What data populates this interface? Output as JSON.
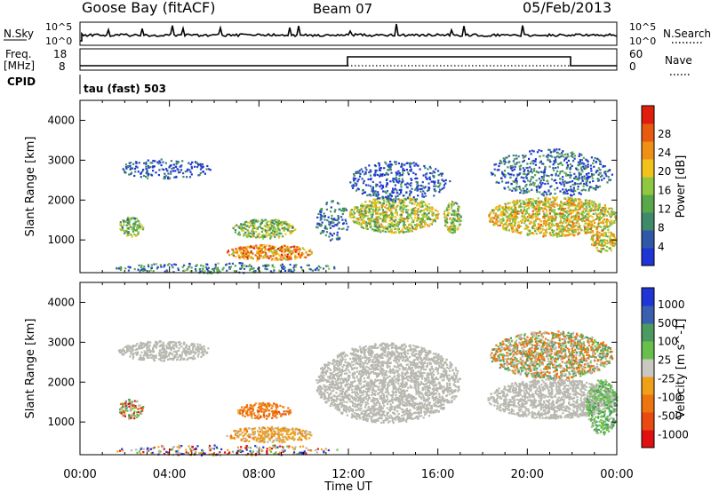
{
  "header": {
    "station": "Goose Bay (fitACF)",
    "beam": "Beam 07",
    "date": "05/Feb/2013"
  },
  "noise_panel": {
    "left_label": "N.Sky",
    "right_label": "N.Search",
    "left_ticks": [
      "10^5",
      "10^0"
    ],
    "right_ticks": [
      "10^5",
      "10^0"
    ]
  },
  "freq_panel": {
    "left_label_1": "Freq.",
    "left_label_2": "[MHz]",
    "right_label": "Nave",
    "left_ticks": [
      "18",
      "8"
    ],
    "right_ticks": [
      "60",
      "0"
    ],
    "cpid_label": "CPID",
    "cpid_text": "tau (fast) 503"
  },
  "colors": {
    "power_scale": [
      "#1f35d6",
      "#2f58a8",
      "#3f8a6a",
      "#58a84a",
      "#8fc83f",
      "#f2c21b",
      "#ef8f14",
      "#e85a10",
      "#e01e0e"
    ],
    "velocity_scale": [
      "#1f35d6",
      "#3a5fb0",
      "#4a9a62",
      "#68c04a",
      "#c8c8c0",
      "#f0a018",
      "#ee7410",
      "#e84a10",
      "#e01010"
    ],
    "ground_scatter": "#b8b8b0"
  },
  "chart_data": [
    {
      "type": "heatmap",
      "title": "Power",
      "xlabel": "Time UT",
      "ylabel": "Slant Range [km]",
      "x_ticks": [
        "00:00",
        "04:00",
        "08:00",
        "12:00",
        "16:00",
        "20:00",
        "00:00"
      ],
      "xlim_hours": [
        0,
        24
      ],
      "y_ticks": [
        "1000",
        "2000",
        "3000",
        "4000"
      ],
      "ylim": [
        180,
        4500
      ],
      "colorbar_label": "Power [dB]",
      "colorbar_ticks": [
        "4",
        "8",
        "12",
        "16",
        "20",
        "24",
        "28"
      ],
      "colorbar_range": [
        0,
        30
      ],
      "features": [
        {
          "t": [
            1.7,
            5.8
          ],
          "r": [
            2550,
            3050
          ],
          "level": 0.12
        },
        {
          "t": [
            1.7,
            2.8
          ],
          "r": [
            1100,
            1600
          ],
          "level": 0.42
        },
        {
          "t": [
            6.8,
            9.6
          ],
          "r": [
            1050,
            1550
          ],
          "level": 0.45
        },
        {
          "t": [
            6.5,
            10.4
          ],
          "r": [
            500,
            900
          ],
          "level": 0.72
        },
        {
          "t": [
            1.5,
            11.5
          ],
          "r": [
            180,
            450
          ],
          "level": 0.25
        },
        {
          "t": [
            10.5,
            12.0
          ],
          "r": [
            1000,
            2000
          ],
          "level": 0.2
        },
        {
          "t": [
            12.0,
            16.0
          ],
          "r": [
            1200,
            2100
          ],
          "level": 0.5
        },
        {
          "t": [
            12.0,
            16.5
          ],
          "r": [
            2000,
            3000
          ],
          "level": 0.12
        },
        {
          "t": [
            16.2,
            17.0
          ],
          "r": [
            1200,
            2000
          ],
          "level": 0.5
        },
        {
          "t": [
            18.2,
            24.0
          ],
          "r": [
            1100,
            2100
          ],
          "level": 0.58
        },
        {
          "t": [
            18.3,
            23.8
          ],
          "r": [
            2100,
            3300
          ],
          "level": 0.2
        },
        {
          "t": [
            22.8,
            24.0
          ],
          "r": [
            700,
            1300
          ],
          "level": 0.6
        }
      ]
    },
    {
      "type": "heatmap",
      "title": "Velocity",
      "xlabel": "Time UT",
      "ylabel": "Slant Range [km]",
      "x_ticks": [
        "00:00",
        "04:00",
        "08:00",
        "12:00",
        "16:00",
        "20:00",
        "00:00"
      ],
      "xlim_hours": [
        0,
        24
      ],
      "y_ticks": [
        "1000",
        "2000",
        "3000",
        "4000"
      ],
      "ylim": [
        180,
        4500
      ],
      "colorbar_label": "Velocity [m s^-1]",
      "colorbar_ticks": [
        "1000",
        "500",
        "100",
        "25",
        "-25",
        "-100",
        "-500",
        "-1000"
      ],
      "features": [
        {
          "t": [
            1.7,
            5.8
          ],
          "r": [
            2550,
            3050
          ],
          "kind": "ground"
        },
        {
          "t": [
            1.7,
            2.8
          ],
          "r": [
            1100,
            1600
          ],
          "kind": "mixed"
        },
        {
          "t": [
            7.0,
            9.4
          ],
          "r": [
            1100,
            1500
          ],
          "kind": "orange"
        },
        {
          "t": [
            6.5,
            10.4
          ],
          "r": [
            500,
            900
          ],
          "kind": "orange_gray"
        },
        {
          "t": [
            1.5,
            11.5
          ],
          "r": [
            180,
            450
          ],
          "kind": "speckle"
        },
        {
          "t": [
            10.5,
            17.0
          ],
          "r": [
            1000,
            3000
          ],
          "kind": "ground"
        },
        {
          "t": [
            18.2,
            24.0
          ],
          "r": [
            1100,
            2100
          ],
          "kind": "ground"
        },
        {
          "t": [
            18.3,
            23.8
          ],
          "r": [
            2100,
            3300
          ],
          "kind": "mixed_orange"
        },
        {
          "t": [
            22.6,
            24.0
          ],
          "r": [
            700,
            2100
          ],
          "kind": "green"
        }
      ]
    }
  ]
}
